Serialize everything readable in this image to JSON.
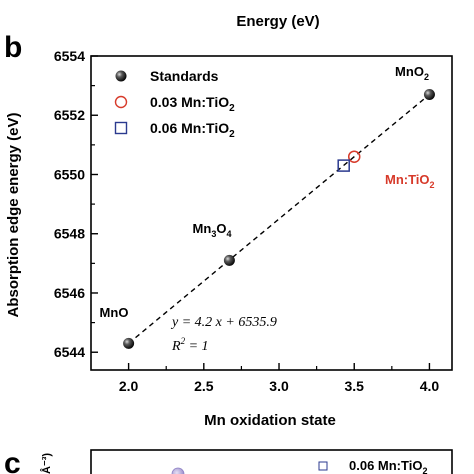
{
  "top_axis_label": "Energy (eV)",
  "panel_b_label": "b",
  "panel_c_label": "c",
  "chart_data": {
    "type": "scatter",
    "xlabel": "Mn oxidation state",
    "ylabel": "Absorption edge energy (eV)",
    "xlim": [
      1.75,
      4.15
    ],
    "ylim": [
      6543.4,
      6554.0
    ],
    "x_ticks": [
      "2.0",
      "2.5",
      "3.0",
      "3.5",
      "4.0"
    ],
    "y_ticks": [
      "6544",
      "6546",
      "6548",
      "6550",
      "6552",
      "6554"
    ],
    "legend": {
      "position": "top-left",
      "entries": [
        {
          "label": "Standards",
          "marker": "filled-sphere"
        },
        {
          "label": "0.03 Mn:TiO",
          "sub": "2",
          "marker": "open-circle",
          "color": "#d73a2a"
        },
        {
          "label": "0.06 Mn:TiO",
          "sub": "2",
          "marker": "open-square",
          "color": "#2b3a8f"
        }
      ]
    },
    "standards": [
      {
        "x": 2.0,
        "y": 6544.3,
        "label": "MnO"
      },
      {
        "x": 2.67,
        "y": 6547.1,
        "label": "Mn3O4"
      },
      {
        "x": 4.0,
        "y": 6552.7,
        "label": "MnO2"
      }
    ],
    "samples": [
      {
        "name": "0.03 Mn:TiO2",
        "x": 3.5,
        "y": 6550.6,
        "marker": "open-circle"
      },
      {
        "name": "0.06 Mn:TiO2",
        "x": 3.43,
        "y": 6550.3,
        "marker": "open-square"
      }
    ],
    "sample_annotation": {
      "text": "Mn:TiO",
      "sub": "2",
      "color": "#d73a2a"
    },
    "fit": {
      "slope": 4.2,
      "intercept": 6535.9,
      "x_range": [
        2.0,
        4.0
      ],
      "style": "dashed"
    },
    "equation": {
      "line1": "y = 4.2 x + 6535.9",
      "line2": "R",
      "line2_sup": "2",
      "line2_rest": " = 1"
    }
  },
  "panel_c": {
    "legend_label": "0.06 Mn:TiO",
    "legend_sub": "2",
    "y_unit_fragment": "Å⁻³)"
  }
}
